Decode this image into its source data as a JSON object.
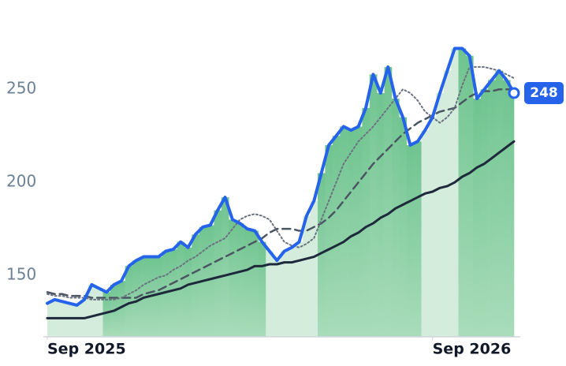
{
  "chart_data": {
    "type": "line",
    "categories": [
      "Sep 2025",
      null,
      null,
      null,
      null,
      null,
      null,
      null,
      null,
      null,
      null,
      null,
      null,
      null,
      null,
      null,
      null,
      null,
      null,
      null,
      null,
      null,
      null,
      null,
      null,
      null,
      null,
      null,
      null,
      null,
      null,
      null,
      null,
      null,
      null,
      null,
      null,
      null,
      null,
      null,
      null,
      null,
      null,
      null,
      null,
      null,
      null,
      null,
      null,
      null,
      null,
      null,
      "Sep 2026",
      null,
      null,
      null,
      null,
      null,
      null,
      null,
      null,
      null,
      null,
      null
    ],
    "series": [
      {
        "color": "#2563eb",
        "style": "solid",
        "width": 4,
        "area": true,
        "values": [
          135,
          137,
          136,
          135,
          134,
          137,
          145,
          143,
          141,
          145,
          147,
          155,
          158,
          160,
          160,
          160,
          163,
          164,
          168,
          165,
          172,
          176,
          177,
          185,
          192,
          180,
          178,
          175,
          174,
          168,
          163,
          158,
          163,
          165,
          168,
          182,
          190,
          205,
          220,
          225,
          230,
          228,
          230,
          240,
          258,
          248,
          262,
          245,
          235,
          220,
          222,
          228,
          235,
          248,
          260,
          272,
          272,
          268,
          245,
          250,
          255,
          260,
          255,
          248
        ]
      },
      {
        "color": "#6b7280",
        "style": "dotted",
        "width": 2,
        "values": [
          140,
          139,
          139,
          138,
          138,
          138,
          137,
          137,
          137,
          137,
          138,
          140,
          142,
          145,
          147,
          149,
          150,
          153,
          155,
          158,
          160,
          163,
          166,
          168,
          170,
          175,
          180,
          182,
          183,
          182,
          180,
          174,
          168,
          166,
          165,
          167,
          170,
          180,
          190,
          200,
          210,
          216,
          222,
          226,
          230,
          235,
          240,
          245,
          250,
          248,
          244,
          238,
          235,
          232,
          235,
          240,
          252,
          262,
          262,
          262,
          261,
          260,
          258,
          256
        ]
      },
      {
        "color": "#4b5563",
        "style": "dashed",
        "width": 2.5,
        "values": [
          141,
          140,
          140,
          139,
          139,
          139,
          138,
          138,
          138,
          138,
          138,
          138,
          138,
          140,
          141,
          142,
          144,
          146,
          148,
          150,
          152,
          154,
          156,
          158,
          160,
          162,
          164,
          166,
          168,
          170,
          173,
          175,
          175,
          175,
          174,
          174,
          176,
          178,
          181,
          185,
          190,
          195,
          200,
          205,
          210,
          214,
          218,
          222,
          226,
          229,
          232,
          234,
          236,
          238,
          239,
          240,
          243,
          246,
          248,
          249,
          249,
          250,
          250,
          250
        ]
      },
      {
        "color": "#1e293b",
        "style": "solid",
        "width": 3,
        "values": [
          127,
          127,
          127,
          127,
          127,
          127,
          128,
          129,
          130,
          131,
          133,
          135,
          136,
          138,
          139,
          140,
          141,
          142,
          143,
          145,
          146,
          147,
          148,
          149,
          150,
          151,
          152,
          153,
          155,
          155,
          156,
          156,
          157,
          157,
          158,
          159,
          160,
          162,
          164,
          166,
          168,
          171,
          173,
          176,
          178,
          181,
          183,
          186,
          188,
          190,
          192,
          194,
          195,
          197,
          198,
          200,
          203,
          205,
          208,
          210,
          213,
          216,
          219,
          222
        ]
      }
    ],
    "highlight_ranges": [
      [
        0,
        7
      ],
      [
        30,
        36
      ],
      [
        51,
        55
      ]
    ],
    "ylim": [
      117,
      298
    ],
    "yticks": [
      150,
      200,
      250
    ]
  }
}
